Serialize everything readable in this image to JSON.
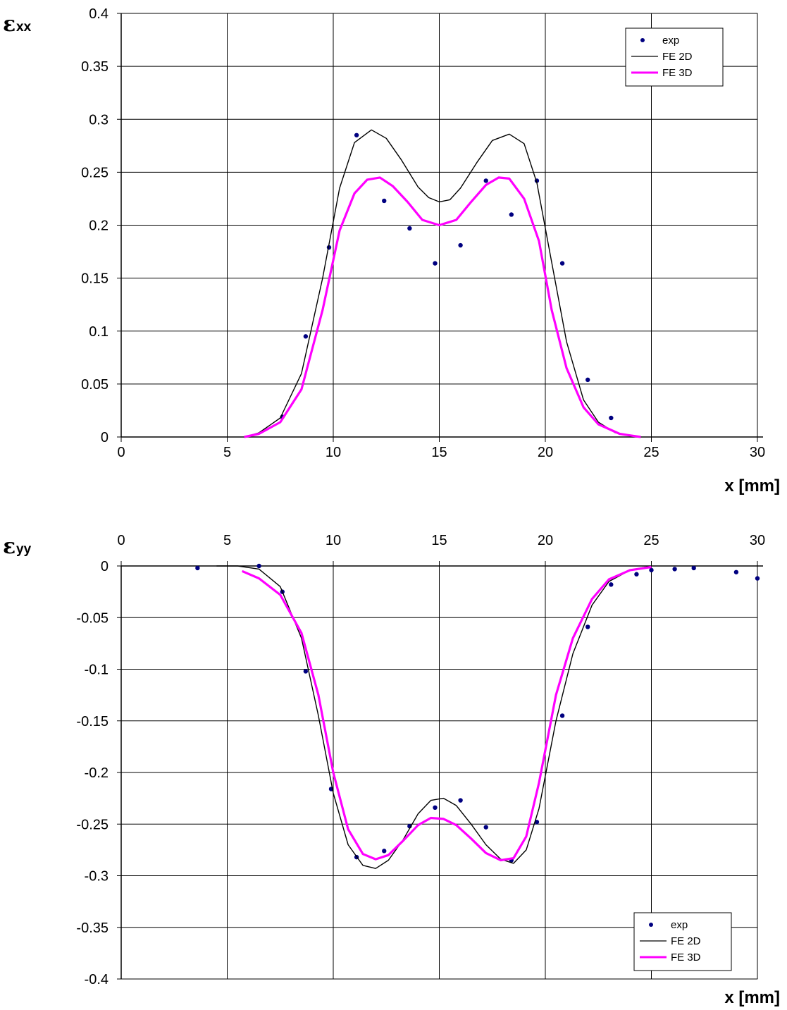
{
  "colors": {
    "exp": "#000080",
    "fe2d": "#000000",
    "fe3d": "#ff00ff"
  },
  "chart_data": [
    {
      "type": "line",
      "ylabel_main": "ε",
      "ylabel_sub": "xx",
      "xlabel": "x [mm]",
      "xlim": [
        0,
        30
      ],
      "ylim": [
        0,
        0.4
      ],
      "x_ticks": [
        "0",
        "5",
        "10",
        "15",
        "20",
        "25",
        "30"
      ],
      "y_ticks": [
        "0.4",
        "0.35",
        "0.3",
        "0.25",
        "0.2",
        "0.15",
        "0.1",
        "0.05",
        "0"
      ],
      "grid": true,
      "legend_position": "top-right",
      "legend": [
        "exp",
        "FE 2D",
        "FE 3D"
      ],
      "series": [
        {
          "name": "exp",
          "style": "markers",
          "color": "#000080",
          "x": [
            7.6,
            8.7,
            9.8,
            11.1,
            12.4,
            13.6,
            14.8,
            16.0,
            17.2,
            18.4,
            19.6,
            20.8,
            22.0,
            23.1
          ],
          "y": [
            0.019,
            0.095,
            0.179,
            0.285,
            0.223,
            0.197,
            0.164,
            0.181,
            0.242,
            0.21,
            0.242,
            0.164,
            0.054,
            0.018
          ]
        },
        {
          "name": "FE 2D",
          "style": "line",
          "color": "#000000",
          "x": [
            5.8,
            6.5,
            7.5,
            8.5,
            9.5,
            10.3,
            11.0,
            11.8,
            12.5,
            13.2,
            14.0,
            14.5,
            15.0,
            15.5,
            16.0,
            16.8,
            17.5,
            18.3,
            19.0,
            19.6,
            20.3,
            21.0,
            21.8,
            22.5,
            23.3,
            24.2
          ],
          "y": [
            0.0,
            0.004,
            0.018,
            0.06,
            0.15,
            0.235,
            0.278,
            0.29,
            0.282,
            0.262,
            0.236,
            0.226,
            0.222,
            0.224,
            0.235,
            0.26,
            0.28,
            0.286,
            0.277,
            0.24,
            0.165,
            0.09,
            0.035,
            0.014,
            0.004,
            0.0
          ]
        },
        {
          "name": "FE 3D",
          "style": "line",
          "color": "#ff00ff",
          "x": [
            5.8,
            6.5,
            7.5,
            8.5,
            9.5,
            10.3,
            11.0,
            11.6,
            12.2,
            12.8,
            13.5,
            14.2,
            15.0,
            15.8,
            16.5,
            17.2,
            17.8,
            18.3,
            19.0,
            19.7,
            20.3,
            21.0,
            21.8,
            22.5,
            23.5,
            24.5
          ],
          "y": [
            0.0,
            0.003,
            0.014,
            0.045,
            0.12,
            0.195,
            0.23,
            0.243,
            0.245,
            0.237,
            0.222,
            0.205,
            0.2,
            0.205,
            0.222,
            0.238,
            0.245,
            0.244,
            0.225,
            0.185,
            0.12,
            0.065,
            0.028,
            0.012,
            0.003,
            0.0
          ]
        }
      ]
    },
    {
      "type": "line",
      "ylabel_main": "ε",
      "ylabel_sub": "yy",
      "xlabel": "x [mm]",
      "xlim": [
        0,
        30
      ],
      "ylim": [
        -0.4,
        0
      ],
      "x_ticks": [
        "0",
        "5",
        "10",
        "15",
        "20",
        "25",
        "30"
      ],
      "y_ticks": [
        "0",
        "-0.05",
        "-0.1",
        "-0.15",
        "-0.2",
        "-0.25",
        "-0.3",
        "-0.35",
        "-0.4"
      ],
      "grid": true,
      "legend_position": "bottom-right",
      "legend": [
        "exp",
        "FE 2D",
        "FE 3D"
      ],
      "series": [
        {
          "name": "exp",
          "style": "markers",
          "color": "#000080",
          "x": [
            3.6,
            6.5,
            7.6,
            8.7,
            9.9,
            11.1,
            12.4,
            13.6,
            14.8,
            16.0,
            17.2,
            18.4,
            19.6,
            20.8,
            22.0,
            23.1,
            24.3,
            25.0,
            26.1,
            27.0,
            29.0,
            30.0
          ],
          "y": [
            -0.002,
            0.0,
            -0.025,
            -0.102,
            -0.216,
            -0.282,
            -0.276,
            -0.252,
            -0.234,
            -0.227,
            -0.253,
            -0.285,
            -0.248,
            -0.145,
            -0.059,
            -0.018,
            -0.008,
            -0.004,
            -0.003,
            -0.002,
            -0.006,
            -0.012
          ]
        },
        {
          "name": "FE 2D",
          "style": "line",
          "color": "#000000",
          "x": [
            4.5,
            5.5,
            6.5,
            7.5,
            8.5,
            9.3,
            10.0,
            10.7,
            11.4,
            12.0,
            12.6,
            13.3,
            14.0,
            14.6,
            15.2,
            15.8,
            16.5,
            17.2,
            17.9,
            18.5,
            19.1,
            19.7,
            20.5,
            21.3,
            22.2,
            23.0,
            24.0,
            25.0
          ],
          "y": [
            0.0,
            0.0,
            -0.003,
            -0.02,
            -0.07,
            -0.145,
            -0.22,
            -0.27,
            -0.29,
            -0.293,
            -0.285,
            -0.265,
            -0.24,
            -0.227,
            -0.225,
            -0.232,
            -0.25,
            -0.27,
            -0.284,
            -0.288,
            -0.275,
            -0.235,
            -0.15,
            -0.085,
            -0.038,
            -0.015,
            -0.004,
            0.0
          ]
        },
        {
          "name": "FE 3D",
          "style": "line",
          "color": "#ff00ff",
          "x": [
            5.7,
            6.5,
            7.5,
            8.5,
            9.3,
            10.0,
            10.7,
            11.4,
            12.0,
            12.6,
            13.3,
            14.0,
            14.6,
            15.2,
            15.8,
            16.5,
            17.2,
            17.9,
            18.5,
            19.1,
            19.7,
            20.5,
            21.3,
            22.2,
            23.0,
            24.0,
            25.0
          ],
          "y": [
            -0.005,
            -0.012,
            -0.028,
            -0.065,
            -0.125,
            -0.2,
            -0.255,
            -0.279,
            -0.284,
            -0.28,
            -0.266,
            -0.251,
            -0.244,
            -0.245,
            -0.251,
            -0.264,
            -0.278,
            -0.285,
            -0.283,
            -0.262,
            -0.21,
            -0.125,
            -0.07,
            -0.032,
            -0.013,
            -0.004,
            -0.001
          ]
        }
      ]
    }
  ]
}
